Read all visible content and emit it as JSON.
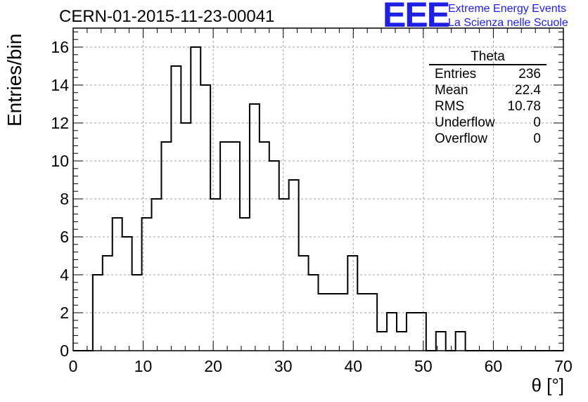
{
  "header": {
    "title": "CERN-01-2015-11-23-00041",
    "logo_mark": "EEE",
    "logo_line1": "Extreme Energy Events",
    "logo_line2": "La Scienza nelle Scuole"
  },
  "stats": {
    "title": "Theta",
    "rows": [
      {
        "label": "Entries",
        "value": "236"
      },
      {
        "label": "Mean",
        "value": "22.4"
      },
      {
        "label": "RMS",
        "value": "10.78"
      },
      {
        "label": "Underflow",
        "value": "0"
      },
      {
        "label": "Overflow",
        "value": "0"
      }
    ]
  },
  "chart_data": {
    "type": "histogram",
    "title": "CERN-01-2015-11-23-00041",
    "xlabel": "θ [°]",
    "ylabel": "Entries/bin",
    "xlim": [
      0,
      70
    ],
    "ylim": [
      0,
      17
    ],
    "grid": true,
    "bin_width": 1.4,
    "bin_edges_start": 0,
    "counts": [
      0,
      0,
      4,
      5,
      7,
      6,
      4,
      7,
      8,
      11,
      15,
      12,
      16,
      14,
      8,
      11,
      11,
      7,
      13,
      11,
      10,
      8,
      9,
      5,
      4,
      3,
      3,
      3,
      5,
      3,
      3,
      1,
      2,
      1,
      2,
      2,
      0,
      1,
      0,
      1,
      0,
      0,
      0,
      0,
      0,
      0,
      0,
      0,
      0,
      0
    ],
    "x_ticks": [
      "0",
      "10",
      "20",
      "30",
      "40",
      "50",
      "60",
      "70"
    ],
    "y_ticks": [
      "0",
      "2",
      "4",
      "6",
      "8",
      "10",
      "12",
      "14",
      "16"
    ],
    "colors": {
      "line": "#000000",
      "grid": "#a0a0a0",
      "logo": "#1f1fe6"
    }
  }
}
